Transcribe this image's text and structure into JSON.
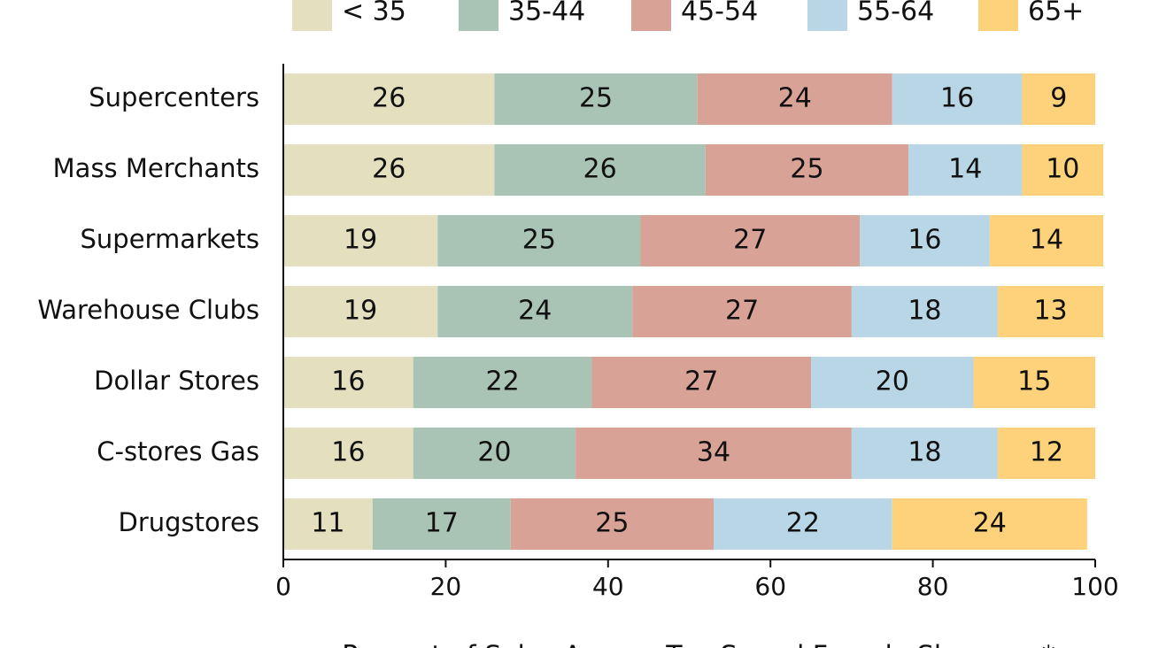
{
  "chart_data": {
    "type": "stacked-bar-horizontal",
    "x_label": "Percent of Sales Among Top-Spend Female Shoppers*",
    "categories": [
      "Supercenters",
      "Mass Merchants",
      "Supermarkets",
      "Warehouse Clubs",
      "Dollar Stores",
      "C-stores Gas",
      "Drugstores"
    ],
    "series": [
      {
        "name": "< 35",
        "color": "#e3dfbf",
        "values": [
          26,
          26,
          19,
          19,
          16,
          16,
          11
        ]
      },
      {
        "name": "35-44",
        "color": "#a9c4b5",
        "values": [
          25,
          26,
          25,
          24,
          22,
          20,
          17
        ]
      },
      {
        "name": "45-54",
        "color": "#d8a396",
        "values": [
          24,
          25,
          27,
          27,
          27,
          34,
          25
        ]
      },
      {
        "name": "55-64",
        "color": "#b9d6e6",
        "values": [
          16,
          14,
          16,
          18,
          20,
          18,
          22
        ]
      },
      {
        "name": "65+",
        "color": "#fdd27a",
        "values": [
          9,
          10,
          14,
          13,
          15,
          12,
          24
        ]
      }
    ],
    "xlim": [
      0,
      100
    ],
    "xticks": [
      0,
      20,
      40,
      60,
      80,
      100
    ],
    "legend": "top"
  }
}
